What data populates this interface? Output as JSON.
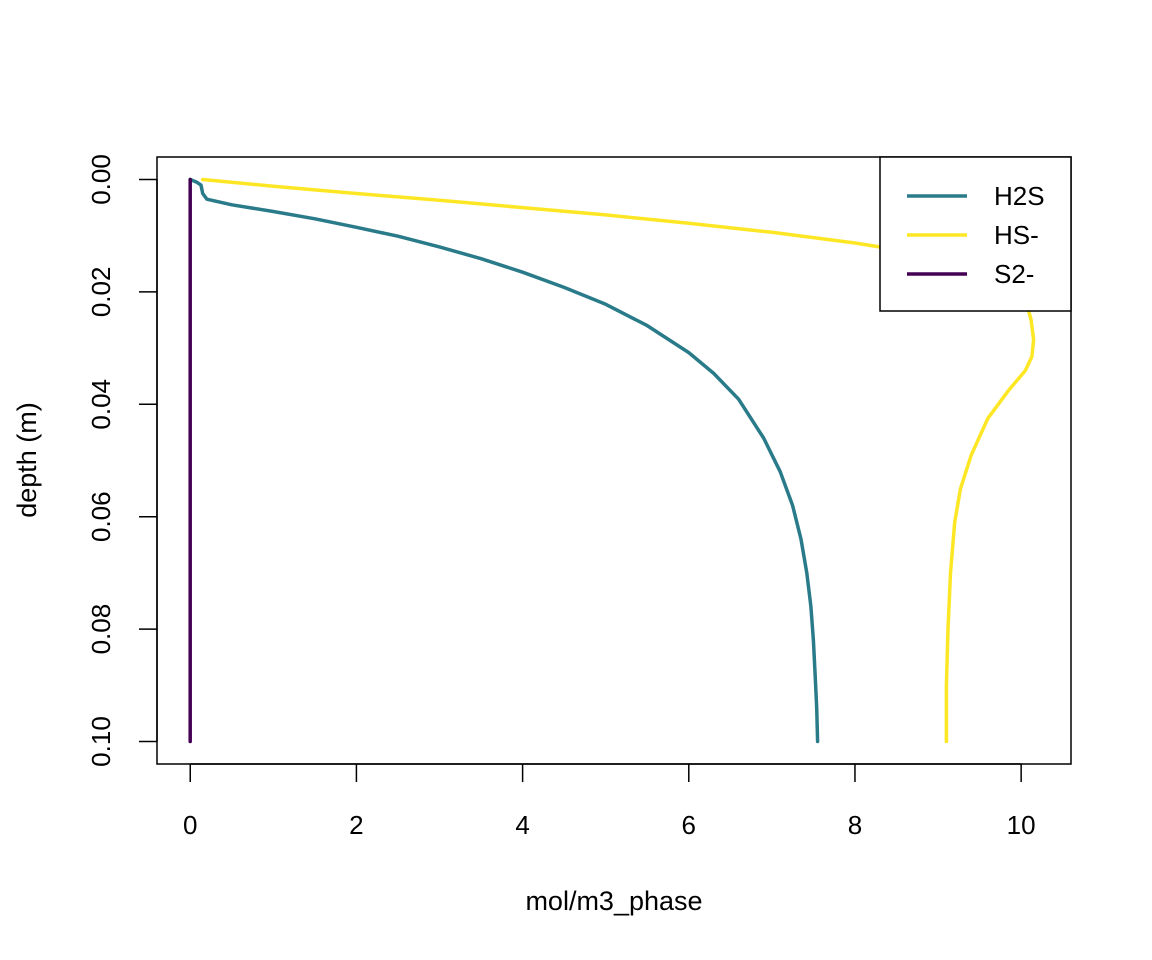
{
  "chart_data": {
    "type": "line",
    "title": "",
    "xlabel": "mol/m3_phase",
    "ylabel": "depth (m)",
    "xlim": [
      -0.4,
      10.6
    ],
    "ylim": [
      0.104,
      -0.004
    ],
    "y_reversed": true,
    "grid": false,
    "legend_position": "top-right",
    "x_ticks": [
      {
        "value": 0,
        "label": "0"
      },
      {
        "value": 2,
        "label": "2"
      },
      {
        "value": 4,
        "label": "4"
      },
      {
        "value": 6,
        "label": "6"
      },
      {
        "value": 8,
        "label": "8"
      },
      {
        "value": 10,
        "label": "10"
      }
    ],
    "y_ticks": [
      {
        "value": 0.0,
        "label": "0.00"
      },
      {
        "value": 0.02,
        "label": "0.02"
      },
      {
        "value": 0.04,
        "label": "0.04"
      },
      {
        "value": 0.06,
        "label": "0.06"
      },
      {
        "value": 0.08,
        "label": "0.08"
      },
      {
        "value": 0.1,
        "label": "0.10"
      }
    ],
    "series": [
      {
        "name": "H2S",
        "color": "#2a7b8a",
        "x": [
          0.0,
          0.08,
          0.13,
          0.15,
          0.2,
          0.5,
          1.0,
          1.5,
          2.0,
          2.5,
          3.0,
          3.5,
          4.0,
          4.5,
          5.0,
          5.5,
          6.0,
          6.3,
          6.6,
          6.9,
          7.1,
          7.25,
          7.35,
          7.42,
          7.47,
          7.5,
          7.52,
          7.54,
          7.55
        ],
        "y": [
          0.0,
          0.0005,
          0.001,
          0.0025,
          0.0035,
          0.0045,
          0.0057,
          0.007,
          0.0085,
          0.0101,
          0.012,
          0.0141,
          0.0165,
          0.0192,
          0.0222,
          0.026,
          0.0308,
          0.0345,
          0.0391,
          0.046,
          0.052,
          0.058,
          0.064,
          0.07,
          0.076,
          0.082,
          0.088,
          0.094,
          0.1
        ]
      },
      {
        "name": "HS-",
        "color": "#fde725",
        "x": [
          0.15,
          1.0,
          2.0,
          3.0,
          4.0,
          5.0,
          6.0,
          7.0,
          8.0,
          8.6,
          9.2,
          9.6,
          9.9,
          10.05,
          10.12,
          10.15,
          10.13,
          10.05,
          9.85,
          9.6,
          9.4,
          9.27,
          9.2,
          9.15,
          9.12,
          9.1,
          9.1
        ],
        "y": [
          0.0,
          0.0012,
          0.0025,
          0.0037,
          0.005,
          0.0063,
          0.0078,
          0.0094,
          0.0113,
          0.0127,
          0.0145,
          0.0163,
          0.0188,
          0.0212,
          0.025,
          0.0285,
          0.0315,
          0.034,
          0.0375,
          0.0425,
          0.049,
          0.055,
          0.061,
          0.07,
          0.08,
          0.09,
          0.1
        ]
      },
      {
        "name": "S2-",
        "color": "#440154",
        "x": [
          0.0,
          0.0
        ],
        "y": [
          0.0,
          0.1
        ]
      }
    ]
  }
}
